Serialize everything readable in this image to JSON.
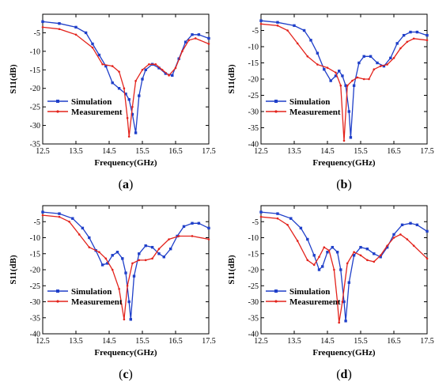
{
  "colors": {
    "simulation": "#1f3fc9",
    "measurement": "#e3231c",
    "axis": "#000000"
  },
  "chart_data": [
    {
      "type": "line",
      "caption": {
        "open": "(",
        "letter": "a",
        "close": ")"
      },
      "xlabel": "Frequency(GHz)",
      "ylabel": "S11(dB)",
      "xlim": [
        12.5,
        17.5
      ],
      "ylim": [
        -35,
        0
      ],
      "xticks": [
        12.5,
        13.5,
        14.5,
        15.5,
        16.5,
        17.5
      ],
      "xtick_labels": [
        "12.5",
        "13.5",
        "14.5",
        "15.5",
        "16.5",
        "17.5"
      ],
      "yticks": [
        0,
        -5,
        -10,
        -15,
        -20,
        -25,
        -30,
        -35
      ],
      "ytick_labels": [
        "",
        "-5",
        "-10",
        "-15",
        "-20",
        "-25",
        "-30",
        "-35"
      ],
      "legend": "lower-left",
      "series": [
        {
          "name": "Simulation",
          "color": "#1f3fc9",
          "marker": "square",
          "points": [
            [
              12.5,
              -2.0
            ],
            [
              13.0,
              -2.5
            ],
            [
              13.5,
              -3.5
            ],
            [
              13.8,
              -5.0
            ],
            [
              14.0,
              -8.0
            ],
            [
              14.2,
              -11.0
            ],
            [
              14.4,
              -14.0
            ],
            [
              14.6,
              -18.5
            ],
            [
              14.8,
              -20.0
            ],
            [
              15.0,
              -21.5
            ],
            [
              15.1,
              -23.0
            ],
            [
              15.2,
              -27.0
            ],
            [
              15.3,
              -32.0
            ],
            [
              15.4,
              -22.0
            ],
            [
              15.5,
              -17.5
            ],
            [
              15.6,
              -15.0
            ],
            [
              15.8,
              -13.5
            ],
            [
              16.0,
              -14.5
            ],
            [
              16.2,
              -16.0
            ],
            [
              16.4,
              -16.5
            ],
            [
              16.6,
              -12.0
            ],
            [
              16.8,
              -7.5
            ],
            [
              17.0,
              -5.5
            ],
            [
              17.2,
              -5.5
            ],
            [
              17.5,
              -6.5
            ]
          ]
        },
        {
          "name": "Measurement",
          "color": "#e3231c",
          "marker": "dot",
          "points": [
            [
              12.5,
              -3.5
            ],
            [
              13.0,
              -4.0
            ],
            [
              13.5,
              -5.5
            ],
            [
              14.0,
              -9.0
            ],
            [
              14.3,
              -13.5
            ],
            [
              14.6,
              -14.0
            ],
            [
              14.8,
              -15.5
            ],
            [
              14.95,
              -20.0
            ],
            [
              15.05,
              -28.0
            ],
            [
              15.1,
              -33.0
            ],
            [
              15.2,
              -25.0
            ],
            [
              15.3,
              -18.0
            ],
            [
              15.5,
              -15.0
            ],
            [
              15.7,
              -13.5
            ],
            [
              15.9,
              -13.5
            ],
            [
              16.1,
              -15.0
            ],
            [
              16.3,
              -16.5
            ],
            [
              16.5,
              -14.5
            ],
            [
              16.7,
              -10.0
            ],
            [
              16.9,
              -7.0
            ],
            [
              17.1,
              -6.5
            ],
            [
              17.5,
              -8.0
            ]
          ]
        }
      ]
    },
    {
      "type": "line",
      "caption": {
        "open": "(",
        "letter": "b",
        "close": ")"
      },
      "xlabel": "Frequency(GHz)",
      "ylabel": "S11(dB)",
      "xlim": [
        12.5,
        17.5
      ],
      "ylim": [
        -40,
        0
      ],
      "xticks": [
        12.5,
        13.5,
        14.5,
        15.5,
        16.5,
        17.5
      ],
      "xtick_labels": [
        "12.5",
        "13.5",
        "14.5",
        "15.5",
        "16.5",
        "17.5"
      ],
      "yticks": [
        0,
        -5,
        -10,
        -15,
        -20,
        -25,
        -30,
        -35,
        -40
      ],
      "ytick_labels": [
        "",
        "-5",
        "-10",
        "-15",
        "-20",
        "-25",
        "-30",
        "-35",
        "-40"
      ],
      "legend": "lower-left",
      "series": [
        {
          "name": "Simulation",
          "color": "#1f3fc9",
          "marker": "square",
          "points": [
            [
              12.5,
              -2.0
            ],
            [
              13.0,
              -2.5
            ],
            [
              13.5,
              -3.5
            ],
            [
              13.8,
              -5.0
            ],
            [
              14.0,
              -8.0
            ],
            [
              14.2,
              -12.0
            ],
            [
              14.4,
              -17.0
            ],
            [
              14.6,
              -20.5
            ],
            [
              14.75,
              -19.0
            ],
            [
              14.85,
              -17.5
            ],
            [
              14.95,
              -19.0
            ],
            [
              15.05,
              -22.0
            ],
            [
              15.15,
              -30.0
            ],
            [
              15.2,
              -38.0
            ],
            [
              15.3,
              -22.0
            ],
            [
              15.45,
              -15.0
            ],
            [
              15.6,
              -13.0
            ],
            [
              15.8,
              -13.0
            ],
            [
              16.0,
              -15.0
            ],
            [
              16.2,
              -16.0
            ],
            [
              16.4,
              -13.5
            ],
            [
              16.6,
              -9.0
            ],
            [
              16.8,
              -6.5
            ],
            [
              17.0,
              -5.5
            ],
            [
              17.2,
              -5.5
            ],
            [
              17.5,
              -6.5
            ]
          ]
        },
        {
          "name": "Measurement",
          "color": "#e3231c",
          "marker": "dot",
          "points": [
            [
              12.5,
              -3.0
            ],
            [
              13.0,
              -3.5
            ],
            [
              13.3,
              -5.0
            ],
            [
              13.6,
              -9.0
            ],
            [
              13.9,
              -13.0
            ],
            [
              14.2,
              -15.5
            ],
            [
              14.5,
              -16.5
            ],
            [
              14.75,
              -18.0
            ],
            [
              14.9,
              -22.0
            ],
            [
              15.0,
              -39.0
            ],
            [
              15.1,
              -22.0
            ],
            [
              15.25,
              -20.5
            ],
            [
              15.4,
              -19.5
            ],
            [
              15.6,
              -20.0
            ],
            [
              15.75,
              -20.0
            ],
            [
              15.9,
              -17.0
            ],
            [
              16.1,
              -16.0
            ],
            [
              16.3,
              -15.5
            ],
            [
              16.5,
              -13.5
            ],
            [
              16.7,
              -10.5
            ],
            [
              16.9,
              -8.5
            ],
            [
              17.1,
              -7.5
            ],
            [
              17.5,
              -8.0
            ]
          ]
        }
      ]
    },
    {
      "type": "line",
      "caption": {
        "open": "(",
        "letter": "c",
        "close": ")"
      },
      "xlabel": "Frequency(GHz)",
      "ylabel": "S11(dB)",
      "xlim": [
        12.5,
        17.5
      ],
      "ylim": [
        -40,
        0
      ],
      "xticks": [
        12.5,
        13.5,
        14.5,
        15.5,
        16.5,
        17.5
      ],
      "xtick_labels": [
        "12.5",
        "13.5",
        "14.5",
        "15.5",
        "16.5",
        "17.5"
      ],
      "yticks": [
        0,
        -5,
        -10,
        -15,
        -20,
        -25,
        -30,
        -35,
        -40
      ],
      "ytick_labels": [
        "",
        "-5",
        "-10",
        "-15",
        "-20",
        "-25",
        "-30",
        "-35",
        "-40"
      ],
      "legend": "lower-left",
      "series": [
        {
          "name": "Simulation",
          "color": "#1f3fc9",
          "marker": "square",
          "points": [
            [
              12.5,
              -2.0
            ],
            [
              13.0,
              -2.5
            ],
            [
              13.4,
              -4.0
            ],
            [
              13.7,
              -7.0
            ],
            [
              13.9,
              -10.0
            ],
            [
              14.1,
              -14.0
            ],
            [
              14.3,
              -18.5
            ],
            [
              14.45,
              -18.0
            ],
            [
              14.6,
              -15.5
            ],
            [
              14.75,
              -14.5
            ],
            [
              14.9,
              -16.5
            ],
            [
              15.0,
              -21.0
            ],
            [
              15.1,
              -30.0
            ],
            [
              15.15,
              -35.5
            ],
            [
              15.25,
              -22.0
            ],
            [
              15.4,
              -15.0
            ],
            [
              15.6,
              -12.5
            ],
            [
              15.8,
              -13.0
            ],
            [
              16.0,
              -15.0
            ],
            [
              16.15,
              -16.0
            ],
            [
              16.35,
              -13.5
            ],
            [
              16.55,
              -9.5
            ],
            [
              16.75,
              -6.5
            ],
            [
              17.0,
              -5.5
            ],
            [
              17.2,
              -5.5
            ],
            [
              17.5,
              -7.0
            ]
          ]
        },
        {
          "name": "Measurement",
          "color": "#e3231c",
          "marker": "dot",
          "points": [
            [
              12.5,
              -3.0
            ],
            [
              13.0,
              -3.5
            ],
            [
              13.3,
              -5.0
            ],
            [
              13.6,
              -9.0
            ],
            [
              13.9,
              -13.0
            ],
            [
              14.2,
              -14.5
            ],
            [
              14.4,
              -16.5
            ],
            [
              14.6,
              -20.0
            ],
            [
              14.8,
              -26.0
            ],
            [
              14.95,
              -35.5
            ],
            [
              15.05,
              -25.0
            ],
            [
              15.2,
              -18.0
            ],
            [
              15.4,
              -17.0
            ],
            [
              15.6,
              -17.0
            ],
            [
              15.8,
              -16.5
            ],
            [
              16.0,
              -13.5
            ],
            [
              16.3,
              -10.5
            ],
            [
              16.6,
              -9.5
            ],
            [
              17.0,
              -9.5
            ],
            [
              17.5,
              -10.5
            ]
          ]
        }
      ]
    },
    {
      "type": "line",
      "caption": {
        "open": "(",
        "letter": "d",
        "close": ")"
      },
      "xlabel": "Frequency(GHz)",
      "ylabel": "S11(dB)",
      "xlim": [
        12.5,
        17.5
      ],
      "ylim": [
        -40,
        0
      ],
      "xticks": [
        12.5,
        13.5,
        14.5,
        15.5,
        16.5,
        17.5
      ],
      "xtick_labels": [
        "12.5",
        "13.5",
        "14.5",
        "15.5",
        "16.5",
        "17.5"
      ],
      "yticks": [
        0,
        -5,
        -10,
        -15,
        -20,
        -25,
        -30,
        -35,
        -40
      ],
      "ytick_labels": [
        "",
        "-5",
        "-10",
        "-15",
        "-20",
        "-25",
        "-30",
        "-35",
        "-40"
      ],
      "legend": "lower-left",
      "series": [
        {
          "name": "Simulation",
          "color": "#1f3fc9",
          "marker": "square",
          "points": [
            [
              12.5,
              -2.0
            ],
            [
              13.0,
              -2.5
            ],
            [
              13.4,
              -4.0
            ],
            [
              13.7,
              -7.0
            ],
            [
              13.9,
              -10.5
            ],
            [
              14.1,
              -15.5
            ],
            [
              14.25,
              -20.0
            ],
            [
              14.35,
              -19.0
            ],
            [
              14.5,
              -14.5
            ],
            [
              14.65,
              -13.0
            ],
            [
              14.8,
              -14.5
            ],
            [
              14.9,
              -20.0
            ],
            [
              15.0,
              -30.0
            ],
            [
              15.05,
              -36.0
            ],
            [
              15.15,
              -24.0
            ],
            [
              15.3,
              -15.5
            ],
            [
              15.5,
              -13.0
            ],
            [
              15.7,
              -13.5
            ],
            [
              15.9,
              -15.0
            ],
            [
              16.1,
              -16.0
            ],
            [
              16.3,
              -13.0
            ],
            [
              16.5,
              -9.0
            ],
            [
              16.75,
              -6.0
            ],
            [
              17.0,
              -5.5
            ],
            [
              17.2,
              -6.0
            ],
            [
              17.5,
              -8.0
            ]
          ]
        },
        {
          "name": "Measurement",
          "color": "#e3231c",
          "marker": "dot",
          "points": [
            [
              12.5,
              -3.5
            ],
            [
              13.0,
              -4.0
            ],
            [
              13.3,
              -6.0
            ],
            [
              13.6,
              -11.0
            ],
            [
              13.9,
              -17.0
            ],
            [
              14.1,
              -18.5
            ],
            [
              14.25,
              -16.0
            ],
            [
              14.4,
              -13.0
            ],
            [
              14.55,
              -14.0
            ],
            [
              14.7,
              -20.0
            ],
            [
              14.8,
              -30.0
            ],
            [
              14.85,
              -36.5
            ],
            [
              14.95,
              -30.0
            ],
            [
              15.1,
              -18.0
            ],
            [
              15.3,
              -14.5
            ],
            [
              15.5,
              -15.5
            ],
            [
              15.7,
              -17.0
            ],
            [
              15.9,
              -17.5
            ],
            [
              16.1,
              -15.5
            ],
            [
              16.3,
              -12.5
            ],
            [
              16.5,
              -10.0
            ],
            [
              16.7,
              -9.0
            ],
            [
              16.9,
              -10.5
            ],
            [
              17.1,
              -12.5
            ],
            [
              17.5,
              -16.5
            ]
          ]
        }
      ]
    }
  ]
}
